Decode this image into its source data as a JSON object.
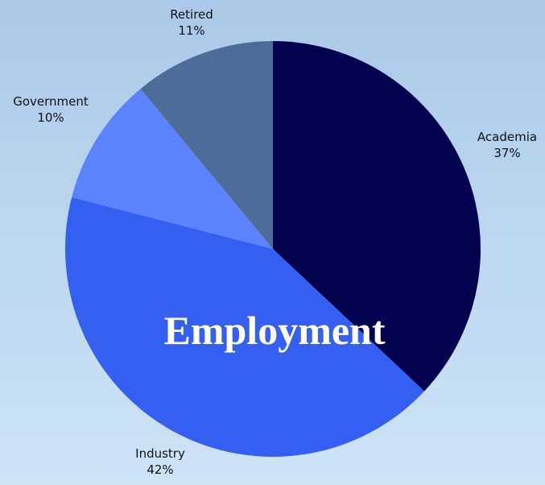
{
  "chart_data": {
    "type": "pie",
    "title": "Employment",
    "slices": [
      {
        "label": "Academia",
        "value": 37,
        "value_label": "37%",
        "color": "#02024f"
      },
      {
        "label": "Industry",
        "value": 42,
        "value_label": "42%",
        "color": "#355ff0"
      },
      {
        "label": "Government",
        "value": 10,
        "value_label": "10%",
        "color": "#5b83ff"
      },
      {
        "label": "Retired",
        "value": 11,
        "value_label": "11%",
        "color": "#4c6c99"
      }
    ],
    "start": "12 o'clock",
    "direction": "clockwise",
    "legend": "none"
  }
}
